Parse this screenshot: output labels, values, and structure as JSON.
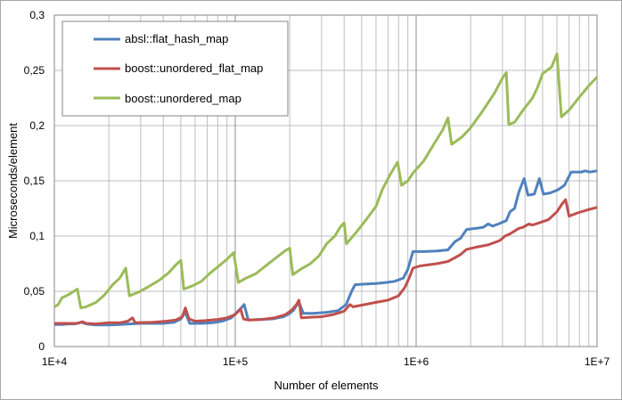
{
  "colors": {
    "grid": "#bfbfbf",
    "grid_decade": "#8c8c8c",
    "axis": "#868686",
    "background": "#ffffff"
  },
  "chart_data": {
    "type": "line",
    "title": "",
    "xlabel": "Number of elements",
    "ylabel": "Microseconds/element",
    "x_scale": "log",
    "xlim": [
      10000,
      10000000
    ],
    "ylim": [
      0,
      0.3
    ],
    "x_ticks": [
      10000,
      100000,
      1000000,
      10000000
    ],
    "x_tick_labels": [
      "1E+4",
      "1E+5",
      "1E+6",
      "1E+7"
    ],
    "y_ticks": [
      0,
      0.05,
      0.1,
      0.15,
      0.2,
      0.25,
      0.3
    ],
    "y_tick_labels": [
      "0",
      "0,05",
      "0,1",
      "0,15",
      "0,2",
      "0,25",
      "0,3"
    ],
    "grid": true,
    "legend_position": "top-left",
    "series": [
      {
        "name": "absl::flat_hash_map",
        "color": "#4f81bd",
        "points": [
          [
            10000,
            0.02
          ],
          [
            11000,
            0.02
          ],
          [
            12000,
            0.0205
          ],
          [
            13000,
            0.0205
          ],
          [
            14000,
            0.022
          ],
          [
            15000,
            0.0205
          ],
          [
            17000,
            0.0195
          ],
          [
            20000,
            0.0195
          ],
          [
            23000,
            0.02
          ],
          [
            26000,
            0.0205
          ],
          [
            30000,
            0.021
          ],
          [
            35000,
            0.021
          ],
          [
            40000,
            0.021
          ],
          [
            46000,
            0.022
          ],
          [
            50000,
            0.025
          ],
          [
            53000,
            0.031
          ],
          [
            56000,
            0.021
          ],
          [
            65000,
            0.021
          ],
          [
            75000,
            0.0215
          ],
          [
            85000,
            0.023
          ],
          [
            95000,
            0.026
          ],
          [
            102000,
            0.031
          ],
          [
            108000,
            0.035
          ],
          [
            112000,
            0.038
          ],
          [
            118000,
            0.024
          ],
          [
            135000,
            0.0245
          ],
          [
            160000,
            0.025
          ],
          [
            185000,
            0.027
          ],
          [
            200000,
            0.03
          ],
          [
            210000,
            0.033
          ],
          [
            218000,
            0.037
          ],
          [
            225000,
            0.04
          ],
          [
            238000,
            0.03
          ],
          [
            270000,
            0.03
          ],
          [
            320000,
            0.031
          ],
          [
            370000,
            0.0325
          ],
          [
            410000,
            0.038
          ],
          [
            440000,
            0.05
          ],
          [
            460000,
            0.056
          ],
          [
            520000,
            0.0565
          ],
          [
            600000,
            0.057
          ],
          [
            680000,
            0.058
          ],
          [
            760000,
            0.059
          ],
          [
            850000,
            0.062
          ],
          [
            900000,
            0.07
          ],
          [
            960000,
            0.086
          ],
          [
            1100000,
            0.086
          ],
          [
            1300000,
            0.0865
          ],
          [
            1500000,
            0.0875
          ],
          [
            1640000,
            0.095
          ],
          [
            1760000,
            0.098
          ],
          [
            1900000,
            0.106
          ],
          [
            2150000,
            0.107
          ],
          [
            2350000,
            0.108
          ],
          [
            2500000,
            0.111
          ],
          [
            2650000,
            0.109
          ],
          [
            2850000,
            0.111
          ],
          [
            3150000,
            0.114
          ],
          [
            3300000,
            0.122
          ],
          [
            3500000,
            0.125
          ],
          [
            3700000,
            0.14
          ],
          [
            3950000,
            0.152
          ],
          [
            4150000,
            0.137
          ],
          [
            4500000,
            0.138
          ],
          [
            4800000,
            0.152
          ],
          [
            5050000,
            0.138
          ],
          [
            5500000,
            0.139
          ],
          [
            6100000,
            0.142
          ],
          [
            6600000,
            0.146
          ],
          [
            7200000,
            0.158
          ],
          [
            8200000,
            0.158
          ],
          [
            8600000,
            0.159
          ],
          [
            9100000,
            0.158
          ],
          [
            10000000,
            0.159
          ]
        ]
      },
      {
        "name": "boost::unordered_flat_map",
        "color": "#c0504d",
        "points": [
          [
            10000,
            0.021
          ],
          [
            12000,
            0.021
          ],
          [
            13500,
            0.021
          ],
          [
            14300,
            0.0225
          ],
          [
            15000,
            0.021
          ],
          [
            17000,
            0.0205
          ],
          [
            20000,
            0.0215
          ],
          [
            23000,
            0.0215
          ],
          [
            25500,
            0.023
          ],
          [
            27000,
            0.026
          ],
          [
            28000,
            0.0215
          ],
          [
            35000,
            0.022
          ],
          [
            42000,
            0.023
          ],
          [
            47000,
            0.024
          ],
          [
            51000,
            0.027
          ],
          [
            53000,
            0.035
          ],
          [
            55500,
            0.025
          ],
          [
            60000,
            0.023
          ],
          [
            68000,
            0.0235
          ],
          [
            80000,
            0.0245
          ],
          [
            90000,
            0.026
          ],
          [
            100000,
            0.029
          ],
          [
            107000,
            0.034
          ],
          [
            111000,
            0.025
          ],
          [
            118000,
            0.024
          ],
          [
            140000,
            0.0245
          ],
          [
            165000,
            0.026
          ],
          [
            190000,
            0.029
          ],
          [
            205000,
            0.033
          ],
          [
            218000,
            0.038
          ],
          [
            225000,
            0.042
          ],
          [
            232000,
            0.026
          ],
          [
            260000,
            0.0265
          ],
          [
            300000,
            0.027
          ],
          [
            350000,
            0.029
          ],
          [
            400000,
            0.032
          ],
          [
            430000,
            0.038
          ],
          [
            448000,
            0.036
          ],
          [
            520000,
            0.038
          ],
          [
            600000,
            0.04
          ],
          [
            700000,
            0.042
          ],
          [
            800000,
            0.046
          ],
          [
            870000,
            0.054
          ],
          [
            920000,
            0.063
          ],
          [
            960000,
            0.071
          ],
          [
            1050000,
            0.073
          ],
          [
            1300000,
            0.075
          ],
          [
            1500000,
            0.077
          ],
          [
            1750000,
            0.083
          ],
          [
            1900000,
            0.088
          ],
          [
            2150000,
            0.09
          ],
          [
            2500000,
            0.092
          ],
          [
            2900000,
            0.096
          ],
          [
            3100000,
            0.1
          ],
          [
            3300000,
            0.102
          ],
          [
            3700000,
            0.107
          ],
          [
            3900000,
            0.108
          ],
          [
            4200000,
            0.111
          ],
          [
            4400000,
            0.11
          ],
          [
            4800000,
            0.112
          ],
          [
            5400000,
            0.115
          ],
          [
            6000000,
            0.122
          ],
          [
            6400000,
            0.129
          ],
          [
            6700000,
            0.133
          ],
          [
            7000000,
            0.118
          ],
          [
            7800000,
            0.121
          ],
          [
            9000000,
            0.124
          ],
          [
            10000000,
            0.126
          ]
        ]
      },
      {
        "name": "boost::unordered_map",
        "color": "#9bbb59",
        "points": [
          [
            10000,
            0.036
          ],
          [
            10500,
            0.038
          ],
          [
            11000,
            0.044
          ],
          [
            12000,
            0.047
          ],
          [
            13400,
            0.052
          ],
          [
            14000,
            0.035
          ],
          [
            15000,
            0.036
          ],
          [
            17000,
            0.04
          ],
          [
            19000,
            0.047
          ],
          [
            21000,
            0.056
          ],
          [
            23000,
            0.062
          ],
          [
            24800,
            0.071
          ],
          [
            26000,
            0.046
          ],
          [
            29000,
            0.049
          ],
          [
            33000,
            0.054
          ],
          [
            38000,
            0.06
          ],
          [
            43000,
            0.067
          ],
          [
            47000,
            0.074
          ],
          [
            50000,
            0.078
          ],
          [
            52000,
            0.052
          ],
          [
            58000,
            0.055
          ],
          [
            65000,
            0.059
          ],
          [
            72000,
            0.066
          ],
          [
            80000,
            0.072
          ],
          [
            90000,
            0.079
          ],
          [
            98000,
            0.085
          ],
          [
            104000,
            0.058
          ],
          [
            115000,
            0.062
          ],
          [
            130000,
            0.066
          ],
          [
            150000,
            0.074
          ],
          [
            170000,
            0.081
          ],
          [
            190000,
            0.087
          ],
          [
            200000,
            0.089
          ],
          [
            208000,
            0.065
          ],
          [
            230000,
            0.07
          ],
          [
            260000,
            0.075
          ],
          [
            290000,
            0.082
          ],
          [
            320000,
            0.093
          ],
          [
            355000,
            0.1
          ],
          [
            380000,
            0.108
          ],
          [
            400000,
            0.112
          ],
          [
            412000,
            0.093
          ],
          [
            470000,
            0.104
          ],
          [
            530000,
            0.115
          ],
          [
            600000,
            0.127
          ],
          [
            650000,
            0.142
          ],
          [
            720000,
            0.156
          ],
          [
            790000,
            0.167
          ],
          [
            830000,
            0.146
          ],
          [
            900000,
            0.15
          ],
          [
            960000,
            0.157
          ],
          [
            1100000,
            0.168
          ],
          [
            1250000,
            0.183
          ],
          [
            1400000,
            0.196
          ],
          [
            1500000,
            0.207
          ],
          [
            1570000,
            0.183
          ],
          [
            1800000,
            0.19
          ],
          [
            2000000,
            0.198
          ],
          [
            2350000,
            0.214
          ],
          [
            2700000,
            0.229
          ],
          [
            3000000,
            0.243
          ],
          [
            3150000,
            0.248
          ],
          [
            3250000,
            0.201
          ],
          [
            3500000,
            0.203
          ],
          [
            3900000,
            0.214
          ],
          [
            4400000,
            0.225
          ],
          [
            4700000,
            0.235
          ],
          [
            5000000,
            0.247
          ],
          [
            5600000,
            0.253
          ],
          [
            6000000,
            0.265
          ],
          [
            6350000,
            0.208
          ],
          [
            7000000,
            0.214
          ],
          [
            8000000,
            0.226
          ],
          [
            9000000,
            0.236
          ],
          [
            10000000,
            0.244
          ]
        ]
      }
    ]
  }
}
